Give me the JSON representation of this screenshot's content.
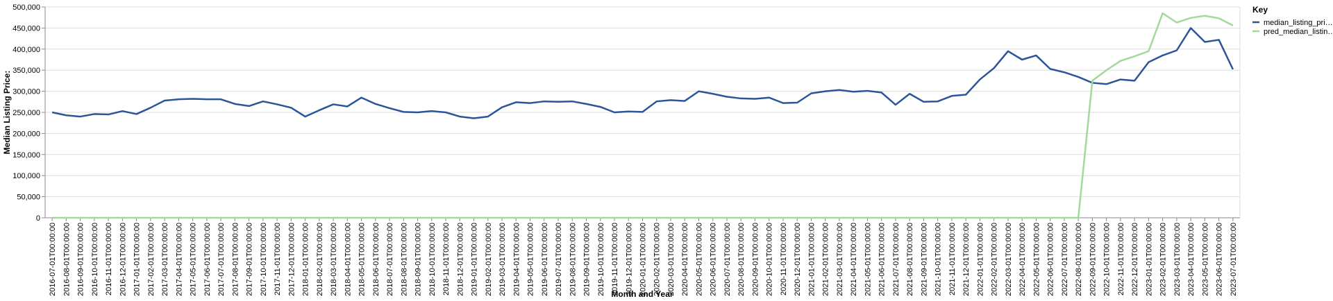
{
  "chart_data": {
    "type": "line",
    "y_label": "Median Listing Price:",
    "x_label": "Month and Year",
    "legend_title": "Key",
    "grid": true,
    "legend": "top-right",
    "categories": [
      "2016-07-01T00:00:00",
      "2016-08-01T00:00:00",
      "2016-09-01T00:00:00",
      "2016-10-01T00:00:00",
      "2016-11-01T00:00:00",
      "2016-12-01T00:00:00",
      "2017-01-01T00:00:00",
      "2017-02-01T00:00:00",
      "2017-03-01T00:00:00",
      "2017-04-01T00:00:00",
      "2017-05-01T00:00:00",
      "2017-06-01T00:00:00",
      "2017-07-01T00:00:00",
      "2017-08-01T00:00:00",
      "2017-09-01T00:00:00",
      "2017-10-01T00:00:00",
      "2017-11-01T00:00:00",
      "2017-12-01T00:00:00",
      "2018-01-01T00:00:00",
      "2018-02-01T00:00:00",
      "2018-03-01T00:00:00",
      "2018-04-01T00:00:00",
      "2018-05-01T00:00:00",
      "2018-06-01T00:00:00",
      "2018-07-01T00:00:00",
      "2018-08-01T00:00:00",
      "2018-09-01T00:00:00",
      "2018-10-01T00:00:00",
      "2018-11-01T00:00:00",
      "2018-12-01T00:00:00",
      "2019-01-01T00:00:00",
      "2019-02-01T00:00:00",
      "2019-03-01T00:00:00",
      "2019-04-01T00:00:00",
      "2019-05-01T00:00:00",
      "2019-06-01T00:00:00",
      "2019-07-01T00:00:00",
      "2019-08-01T00:00:00",
      "2019-09-01T00:00:00",
      "2019-10-01T00:00:00",
      "2019-11-01T00:00:00",
      "2019-12-01T00:00:00",
      "2020-01-01T00:00:00",
      "2020-02-01T00:00:00",
      "2020-03-01T00:00:00",
      "2020-04-01T00:00:00",
      "2020-05-01T00:00:00",
      "2020-06-01T00:00:00",
      "2020-07-01T00:00:00",
      "2020-08-01T00:00:00",
      "2020-09-01T00:00:00",
      "2020-10-01T00:00:00",
      "2020-11-01T00:00:00",
      "2020-12-01T00:00:00",
      "2021-01-01T00:00:00",
      "2021-02-01T00:00:00",
      "2021-03-01T00:00:00",
      "2021-04-01T00:00:00",
      "2021-05-01T00:00:00",
      "2021-06-01T00:00:00",
      "2021-07-01T00:00:00",
      "2021-08-01T00:00:00",
      "2021-09-01T00:00:00",
      "2021-10-01T00:00:00",
      "2021-11-01T00:00:00",
      "2021-12-01T00:00:00",
      "2022-01-01T00:00:00",
      "2022-02-01T00:00:00",
      "2022-03-01T00:00:00",
      "2022-04-01T00:00:00",
      "2022-05-01T00:00:00",
      "2022-06-01T00:00:00",
      "2022-07-01T00:00:00",
      "2022-08-01T00:00:00",
      "2022-09-01T00:00:00",
      "2022-10-01T00:00:00",
      "2022-11-01T00:00:00",
      "2022-12-01T00:00:00",
      "2023-01-01T00:00:00",
      "2023-02-01T00:00:00",
      "2023-03-01T00:00:00",
      "2023-04-01T00:00:00",
      "2023-05-01T00:00:00",
      "2023-06-01T00:00:00",
      "2023-07-01T00:00:00"
    ],
    "series": [
      {
        "name": "median_listing_pri…",
        "color": "#2a5599",
        "values": [
          250000,
          243000,
          240000,
          246000,
          245000,
          253000,
          246000,
          261000,
          278000,
          281000,
          282000,
          281000,
          281000,
          270000,
          265000,
          276000,
          269000,
          261000,
          240000,
          255000,
          269000,
          264000,
          285000,
          270000,
          260000,
          251000,
          250000,
          253000,
          250000,
          240000,
          236000,
          240000,
          262000,
          274000,
          272000,
          276000,
          275000,
          276000,
          270000,
          263000,
          250000,
          252000,
          251000,
          276000,
          279000,
          277000,
          300000,
          294000,
          287000,
          283000,
          282000,
          285000,
          272000,
          273000,
          295000,
          300000,
          303000,
          299000,
          301000,
          297000,
          268000,
          294000,
          275000,
          276000,
          289000,
          292000,
          328000,
          355000,
          395000,
          375000,
          385000,
          353000,
          345000,
          334000,
          320000,
          317000,
          328000,
          325000,
          369000,
          385000,
          397000,
          450000,
          417000,
          422000,
          352000
        ]
      },
      {
        "name": "pred_median_listin…",
        "color": "#a1d99b",
        "values": [
          0,
          0,
          0,
          0,
          0,
          0,
          0,
          0,
          0,
          0,
          0,
          0,
          0,
          0,
          0,
          0,
          0,
          0,
          0,
          0,
          0,
          0,
          0,
          0,
          0,
          0,
          0,
          0,
          0,
          0,
          0,
          0,
          0,
          0,
          0,
          0,
          0,
          0,
          0,
          0,
          0,
          0,
          0,
          0,
          0,
          0,
          0,
          0,
          0,
          0,
          0,
          0,
          0,
          0,
          0,
          0,
          0,
          0,
          0,
          0,
          0,
          0,
          0,
          0,
          0,
          0,
          0,
          0,
          0,
          0,
          0,
          0,
          0,
          0,
          325000,
          350000,
          372000,
          383000,
          395000,
          485000,
          463000,
          474000,
          479000,
          473000,
          456000
        ]
      }
    ],
    "ylim": [
      0,
      500000
    ],
    "yticks": [
      0,
      {
        "value": 50000,
        "label": "50,000"
      },
      {
        "value": 100000,
        "label": "100,000"
      },
      {
        "value": 150000,
        "label": "150,000"
      },
      {
        "value": 200000,
        "label": "200,000"
      },
      {
        "value": 250000,
        "label": "250,000"
      },
      {
        "value": 300000,
        "label": "300,000"
      },
      {
        "value": 350000,
        "label": "350,000"
      },
      {
        "value": 400000,
        "label": "400,000"
      },
      {
        "value": 450000,
        "label": "450,000"
      },
      {
        "value": 500000,
        "label": "500,000"
      }
    ]
  }
}
